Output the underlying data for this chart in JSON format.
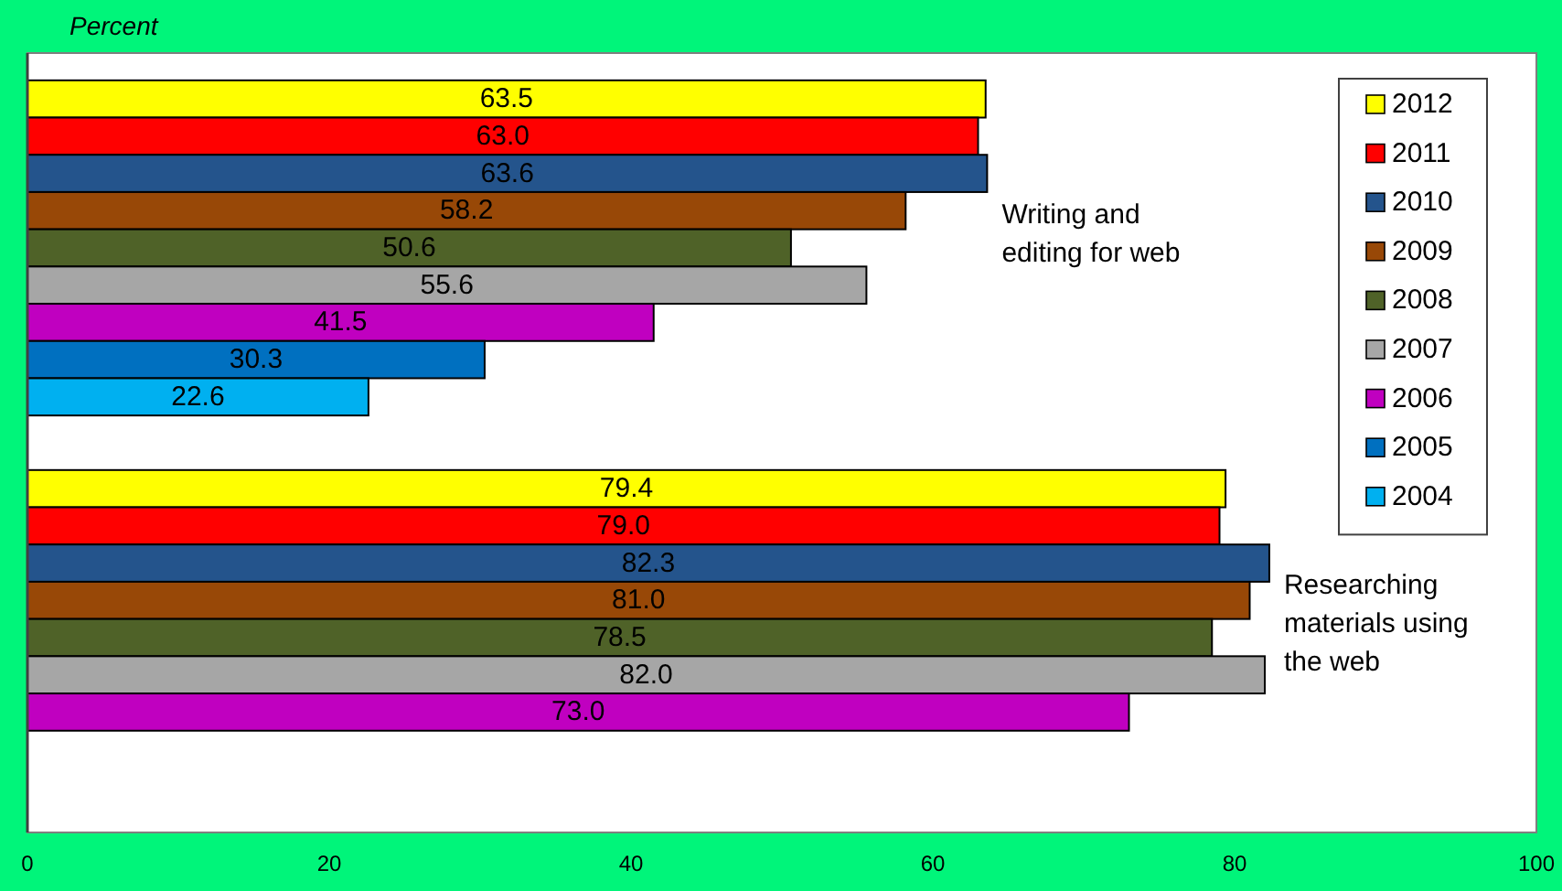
{
  "chart_data": {
    "type": "bar",
    "orientation": "horizontal",
    "xlabel": "Percent",
    "categories": [
      "Writing and editing for web",
      "Researching materials using the web"
    ],
    "series": [
      {
        "name": "2012",
        "color": "#ffff00",
        "values": [
          63.5,
          79.4
        ],
        "value_labels": [
          "63.5",
          "79.4"
        ]
      },
      {
        "name": "2011",
        "color": "#ff0000",
        "values": [
          63.0,
          79.0
        ],
        "value_labels": [
          "63.0",
          "79.0"
        ]
      },
      {
        "name": "2010",
        "color": "#24548c",
        "values": [
          63.6,
          82.3
        ],
        "value_labels": [
          "63.6",
          "82.3"
        ]
      },
      {
        "name": "2009",
        "color": "#984807",
        "values": [
          58.2,
          81.0
        ],
        "value_labels": [
          "58.2",
          "81.0"
        ]
      },
      {
        "name": "2008",
        "color": "#4f6228",
        "values": [
          50.6,
          78.5
        ],
        "value_labels": [
          "50.6",
          "78.5"
        ]
      },
      {
        "name": "2007",
        "color": "#a6a6a6",
        "values": [
          55.6,
          82.0
        ],
        "value_labels": [
          "55.6",
          "82.0"
        ]
      },
      {
        "name": "2006",
        "color": "#c000c0",
        "values": [
          41.5,
          73.0
        ],
        "value_labels": [
          "41.5",
          "73.0"
        ]
      },
      {
        "name": "2005",
        "color": "#0070c0",
        "values": [
          30.3,
          null
        ],
        "value_labels": [
          "30.3",
          null
        ]
      },
      {
        "name": "2004",
        "color": "#00b0f0",
        "values": [
          22.6,
          null
        ],
        "value_labels": [
          "22.6",
          null
        ]
      }
    ],
    "xlim": [
      0,
      100
    ],
    "xticks": [
      0,
      20,
      40,
      60,
      80,
      100
    ],
    "legend": "top right"
  }
}
